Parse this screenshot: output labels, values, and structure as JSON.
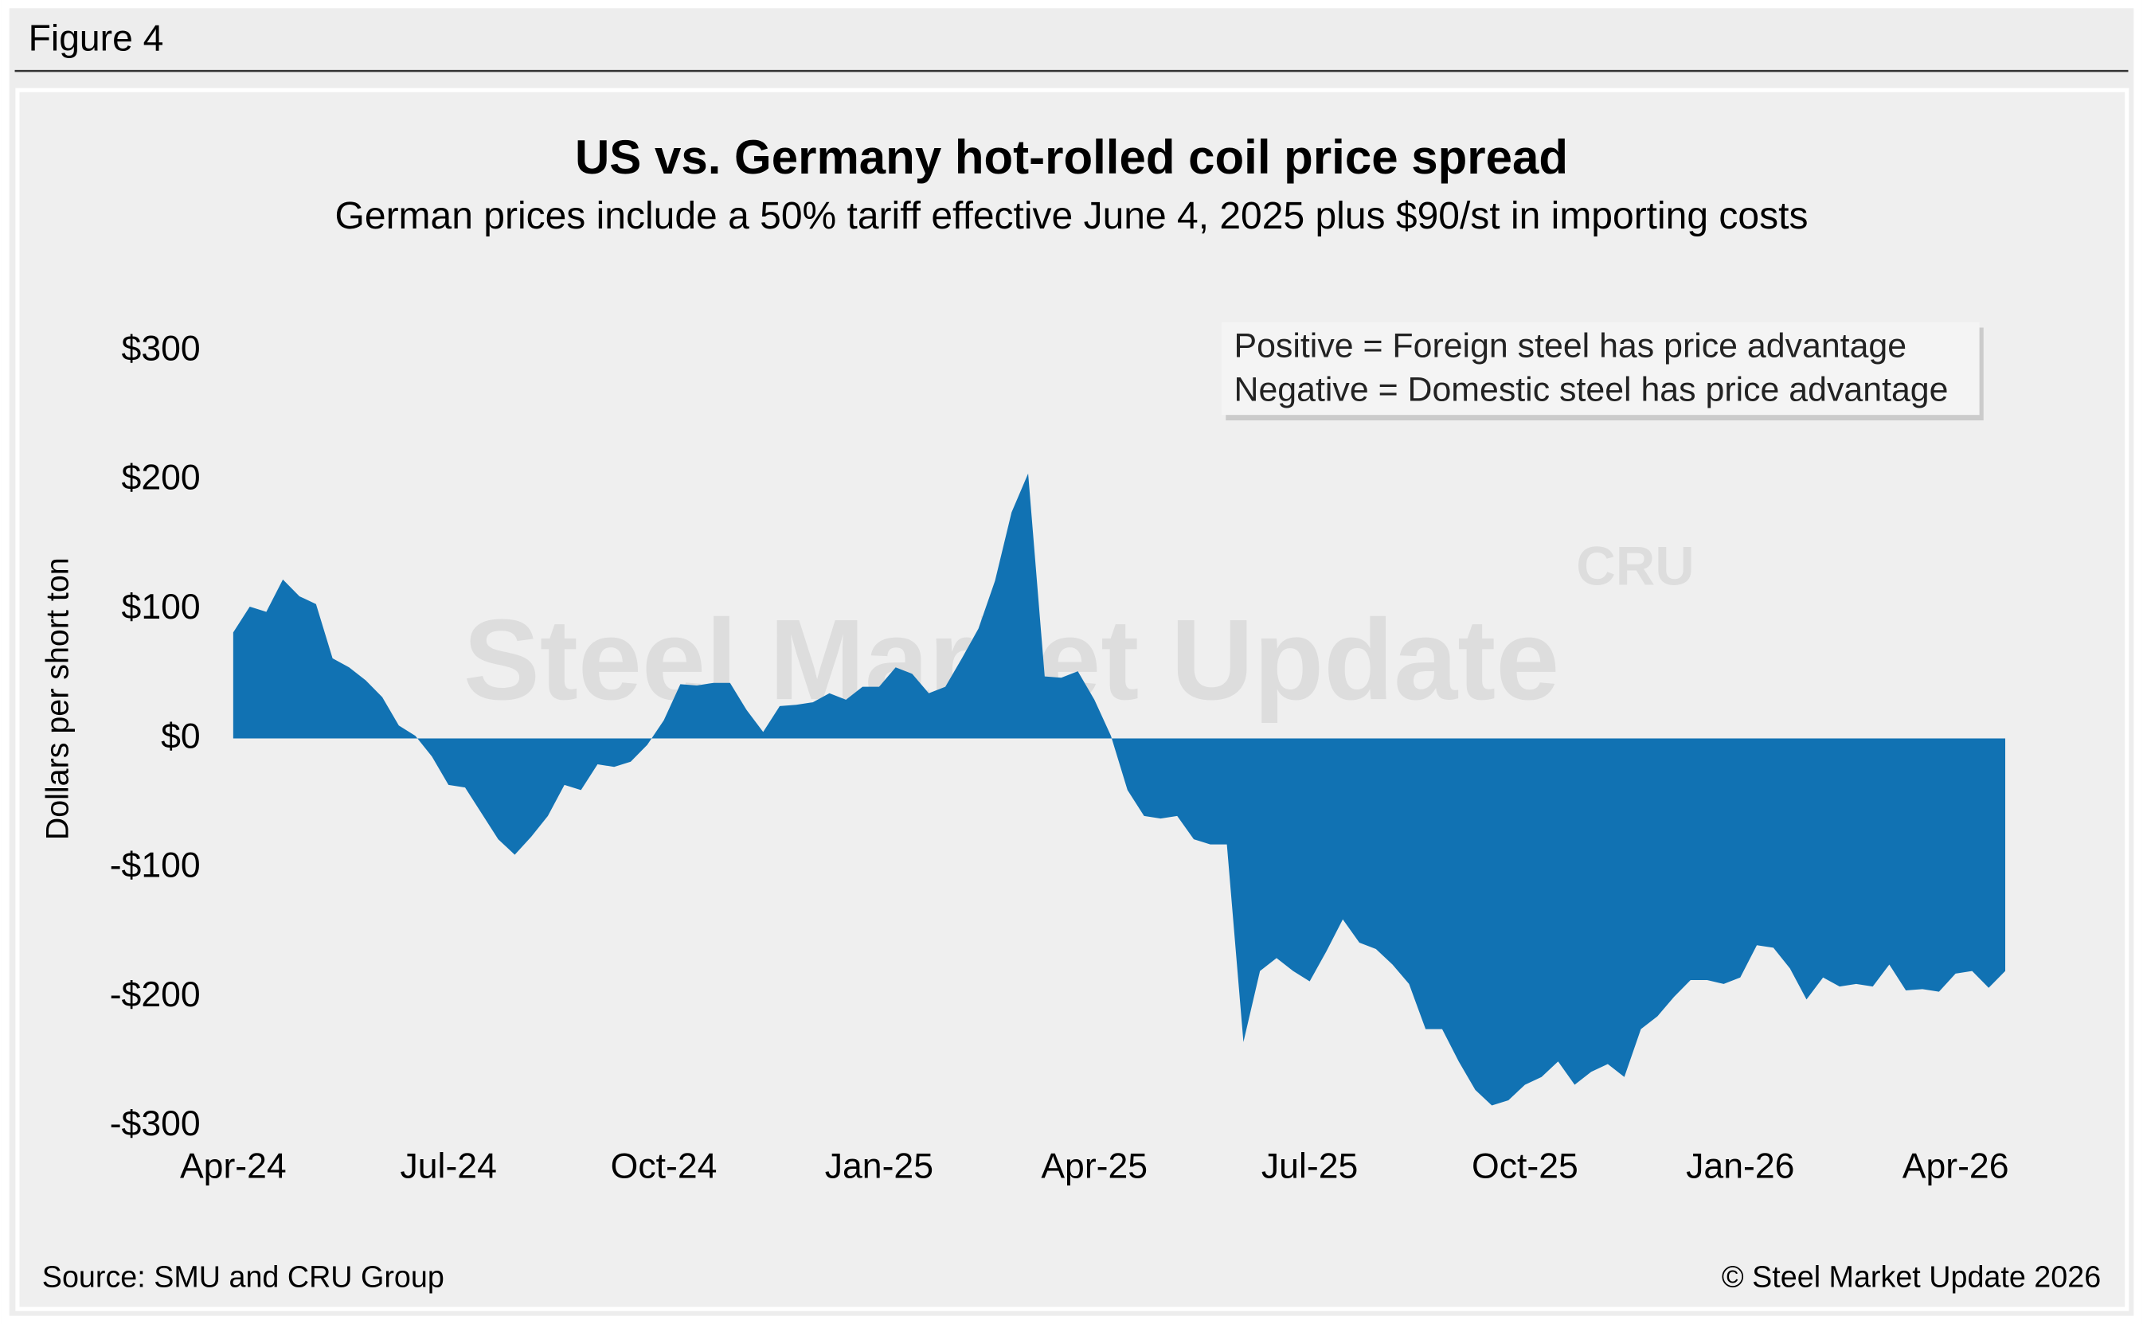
{
  "figure_label": "Figure 4",
  "source": "Source: SMU and CRU Group",
  "copyright": "© Steel Market Update 2026",
  "chart_data": {
    "type": "area",
    "title": "US vs. Germany hot-rolled coil price spread",
    "subtitle": "German prices include a 50% tariff effective June 4, 2025 plus $90/st in importing costs",
    "ylabel": "Dollars per short ton",
    "annotation": [
      "Positive = Foreign steel has price advantage",
      "Negative = Domestic steel has price advantage"
    ],
    "watermark": [
      "Steel Market Update",
      "CRU"
    ],
    "color": "#1172b3",
    "categories": [
      "Apr-24",
      null,
      null,
      null,
      null,
      null,
      null,
      null,
      null,
      null,
      null,
      null,
      null,
      "Jul-24",
      null,
      null,
      null,
      null,
      null,
      null,
      null,
      null,
      null,
      null,
      null,
      null,
      "Oct-24",
      null,
      null,
      null,
      null,
      null,
      null,
      null,
      null,
      null,
      null,
      null,
      null,
      "Jan-25",
      null,
      null,
      null,
      null,
      null,
      null,
      null,
      null,
      null,
      null,
      null,
      null,
      "Apr-25",
      null,
      null,
      null,
      null,
      null,
      null,
      null,
      null,
      null,
      null,
      null,
      null,
      "Jul-25",
      null,
      null,
      null,
      null,
      null,
      null,
      null,
      null,
      null,
      null,
      null,
      null,
      "Oct-25",
      null,
      null,
      null,
      null,
      null,
      null,
      null,
      null,
      null,
      null,
      null,
      null,
      "Jan-26",
      null,
      null,
      null,
      null,
      null,
      null,
      null,
      null,
      null,
      null,
      null,
      null,
      "Apr-26",
      null,
      null,
      null
    ],
    "values": [
      82,
      102,
      98,
      123,
      110,
      104,
      62,
      55,
      45,
      32,
      10,
      2,
      -14,
      -36,
      -38,
      -58,
      -78,
      -90,
      -76,
      -60,
      -36,
      -40,
      -20,
      -22,
      -18,
      -5,
      14,
      42,
      41,
      43,
      43,
      22,
      5,
      25,
      26,
      28,
      35,
      30,
      40,
      40,
      55,
      50,
      35,
      40,
      62,
      85,
      122,
      175,
      205,
      48,
      47,
      52,
      30,
      2,
      -40,
      -60,
      -62,
      -60,
      -78,
      -82,
      -82,
      -235,
      -180,
      -170,
      -180,
      -188,
      -165,
      -140,
      -158,
      -163,
      -175,
      -190,
      -225,
      -225,
      -250,
      -272,
      -284,
      -280,
      -268,
      -262,
      -250,
      -268,
      -258,
      -252,
      -262,
      -225,
      -215,
      -200,
      -187,
      -187,
      -190,
      -185,
      -160,
      -162,
      -178,
      -202,
      -185,
      -192,
      -190,
      -192,
      -175,
      -195,
      -194,
      -196,
      -182,
      -180,
      -193,
      -180
    ],
    "ylim": [
      -300,
      300
    ],
    "yticks": [
      {
        "value": -300,
        "label": "-$300"
      },
      {
        "value": -200,
        "label": "-$200"
      },
      {
        "value": -100,
        "label": "-$100"
      },
      {
        "value": 0,
        "label": "$0"
      },
      {
        "value": 100,
        "label": "$100"
      },
      {
        "value": 200,
        "label": "$200"
      },
      {
        "value": 300,
        "label": "$300"
      }
    ],
    "grid": false
  }
}
